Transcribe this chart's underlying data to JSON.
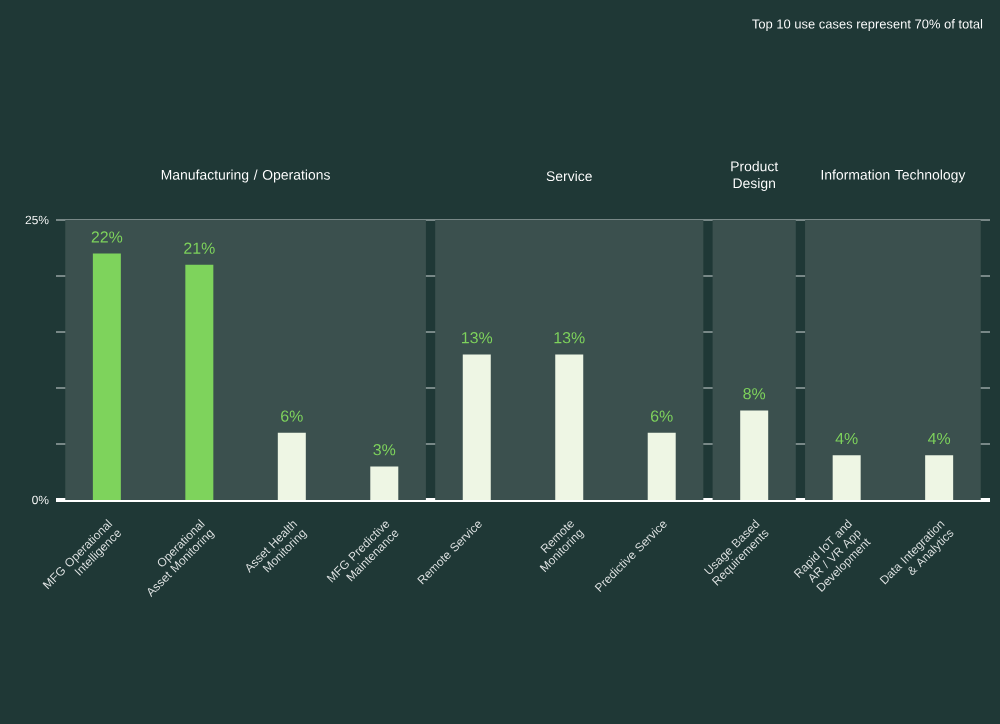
{
  "chart_data": {
    "type": "bar",
    "subtitle": "Top 10 use cases represent 70% of total",
    "categories": [
      "MFG Operational Intelligence",
      "Operational Asset Monitoring",
      "Asset Health Monitoring",
      "MFG Predictive Maintenance",
      "Remote Service",
      "Remote Monitoring",
      "Predictive Service",
      "Usage Based Requirements",
      "Rapid IoT and AR / VR App Development",
      "Data Integration & Analytics"
    ],
    "values": [
      22,
      21,
      6,
      3,
      13,
      13,
      6,
      8,
      4,
      4
    ],
    "value_labels": [
      "22%",
      "21%",
      "6%",
      "3%",
      "13%",
      "13%",
      "6%",
      "8%",
      "4%",
      "4%"
    ],
    "colors": [
      "#7ed35c",
      "#7ed35c",
      "#eef6e4",
      "#eef6e4",
      "#eef6e4",
      "#eef6e4",
      "#eef6e4",
      "#eef6e4",
      "#eef6e4",
      "#eef6e4"
    ],
    "bands": [
      {
        "axis": "x",
        "from": "MFG Operational Intelligence",
        "to": "MFG Predictive Maintenance",
        "label": "Manufacturing / Operations",
        "color": "#3b504e"
      },
      {
        "axis": "x",
        "from": "Remote Service",
        "to": "Predictive Service",
        "label": "Service",
        "color": "#3b504e"
      },
      {
        "axis": "x",
        "from": "Usage Based Requirements",
        "to": "Usage Based Requirements",
        "label": "Product Design",
        "color": "#3b504e"
      },
      {
        "axis": "x",
        "from": "Rapid IoT and AR / VR App Development",
        "to": "Data Integration & Analytics",
        "label": "Information Technology",
        "color": "#3b504e"
      }
    ],
    "ylim": [
      0,
      25
    ],
    "yticks": [
      {
        "value": 0,
        "label": "0%"
      },
      {
        "value": 5,
        "label": null
      },
      {
        "value": 10,
        "label": null
      },
      {
        "value": 15,
        "label": null
      },
      {
        "value": 20,
        "label": null
      },
      {
        "value": 25,
        "label": "25%"
      }
    ],
    "grid": "y"
  }
}
